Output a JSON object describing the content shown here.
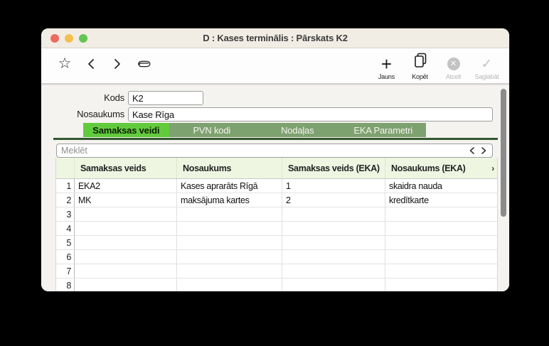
{
  "window": {
    "title": "D : Kases terminālis : Pārskats K2"
  },
  "toolbar": {
    "icons": {
      "star": "☆"
    },
    "buttons": [
      {
        "id": "jauns",
        "label": "Jauns",
        "enabled": true,
        "icon": "plus-icon"
      },
      {
        "id": "kopet",
        "label": "Kopēt",
        "enabled": true,
        "icon": "copy-icon"
      },
      {
        "id": "atcelt",
        "label": "Atcelt",
        "enabled": false,
        "icon": "cancel-circle-icon"
      },
      {
        "id": "saglabat",
        "label": "Saglabāt",
        "enabled": false,
        "icon": "checkmark-icon",
        "glyph": "✓"
      }
    ],
    "cancel_glyph": "✕"
  },
  "form": {
    "kods": {
      "label": "Kods",
      "value": "K2"
    },
    "nosaukums": {
      "label": "Nosaukums",
      "value": "Kase Rīga"
    }
  },
  "tabs": {
    "items": [
      {
        "label": "Samaksas veidi",
        "active": true
      },
      {
        "label": "PVN kodi",
        "active": false
      },
      {
        "label": "Nodaļas",
        "active": false
      },
      {
        "label": "EKA Parametri",
        "active": false
      }
    ]
  },
  "search": {
    "placeholder": "Meklēt"
  },
  "table": {
    "columns": [
      "Samaksas veids",
      "Nosaukums",
      "Samaksas veids (EKA)",
      "Nosaukums (EKA)"
    ],
    "overflow_indicator": "›",
    "rows": [
      [
        "EKA2",
        "Kases aprarāts Rīgā",
        "1",
        "skaidra nauda"
      ],
      [
        "MK",
        "maksājuma kartes",
        "2",
        "kredītkarte"
      ]
    ],
    "visible_row_count": 8
  },
  "colors": {
    "accent_green": "#62cb3d",
    "tab_bar_green": "#7ea170",
    "tab_underline_green": "#33582f",
    "header_green": "#eef6e2",
    "titlebar_cream": "#f2ede4",
    "traffic_red": "#ed6a5e",
    "traffic_yellow": "#f5bf4f",
    "traffic_green": "#62c554"
  }
}
